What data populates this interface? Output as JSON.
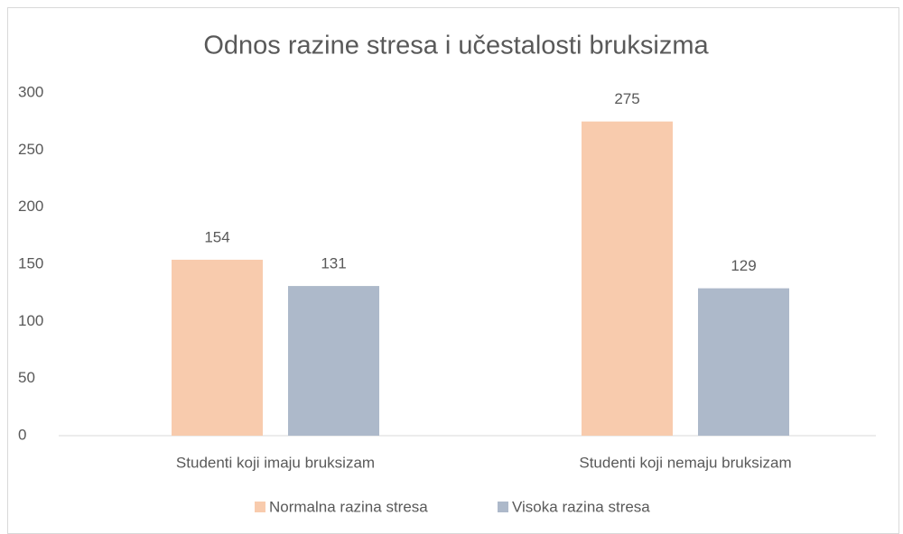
{
  "chart_data": {
    "type": "bar",
    "title": "Odnos razine stresa i učestalosti bruksizma",
    "categories": [
      "Studenti koji imaju bruksizam",
      "Studenti koji nemaju bruksizam"
    ],
    "series": [
      {
        "name": "Normalna razina stresa",
        "color": "#f8cbad",
        "values": [
          154,
          275
        ]
      },
      {
        "name": "Visoka razina stresa",
        "color": "#adb9ca",
        "values": [
          131,
          129
        ]
      }
    ],
    "ylim": [
      0,
      300
    ],
    "yticks": [
      0,
      50,
      100,
      150,
      200,
      250,
      300
    ],
    "grid": false,
    "legend": "bottom"
  }
}
